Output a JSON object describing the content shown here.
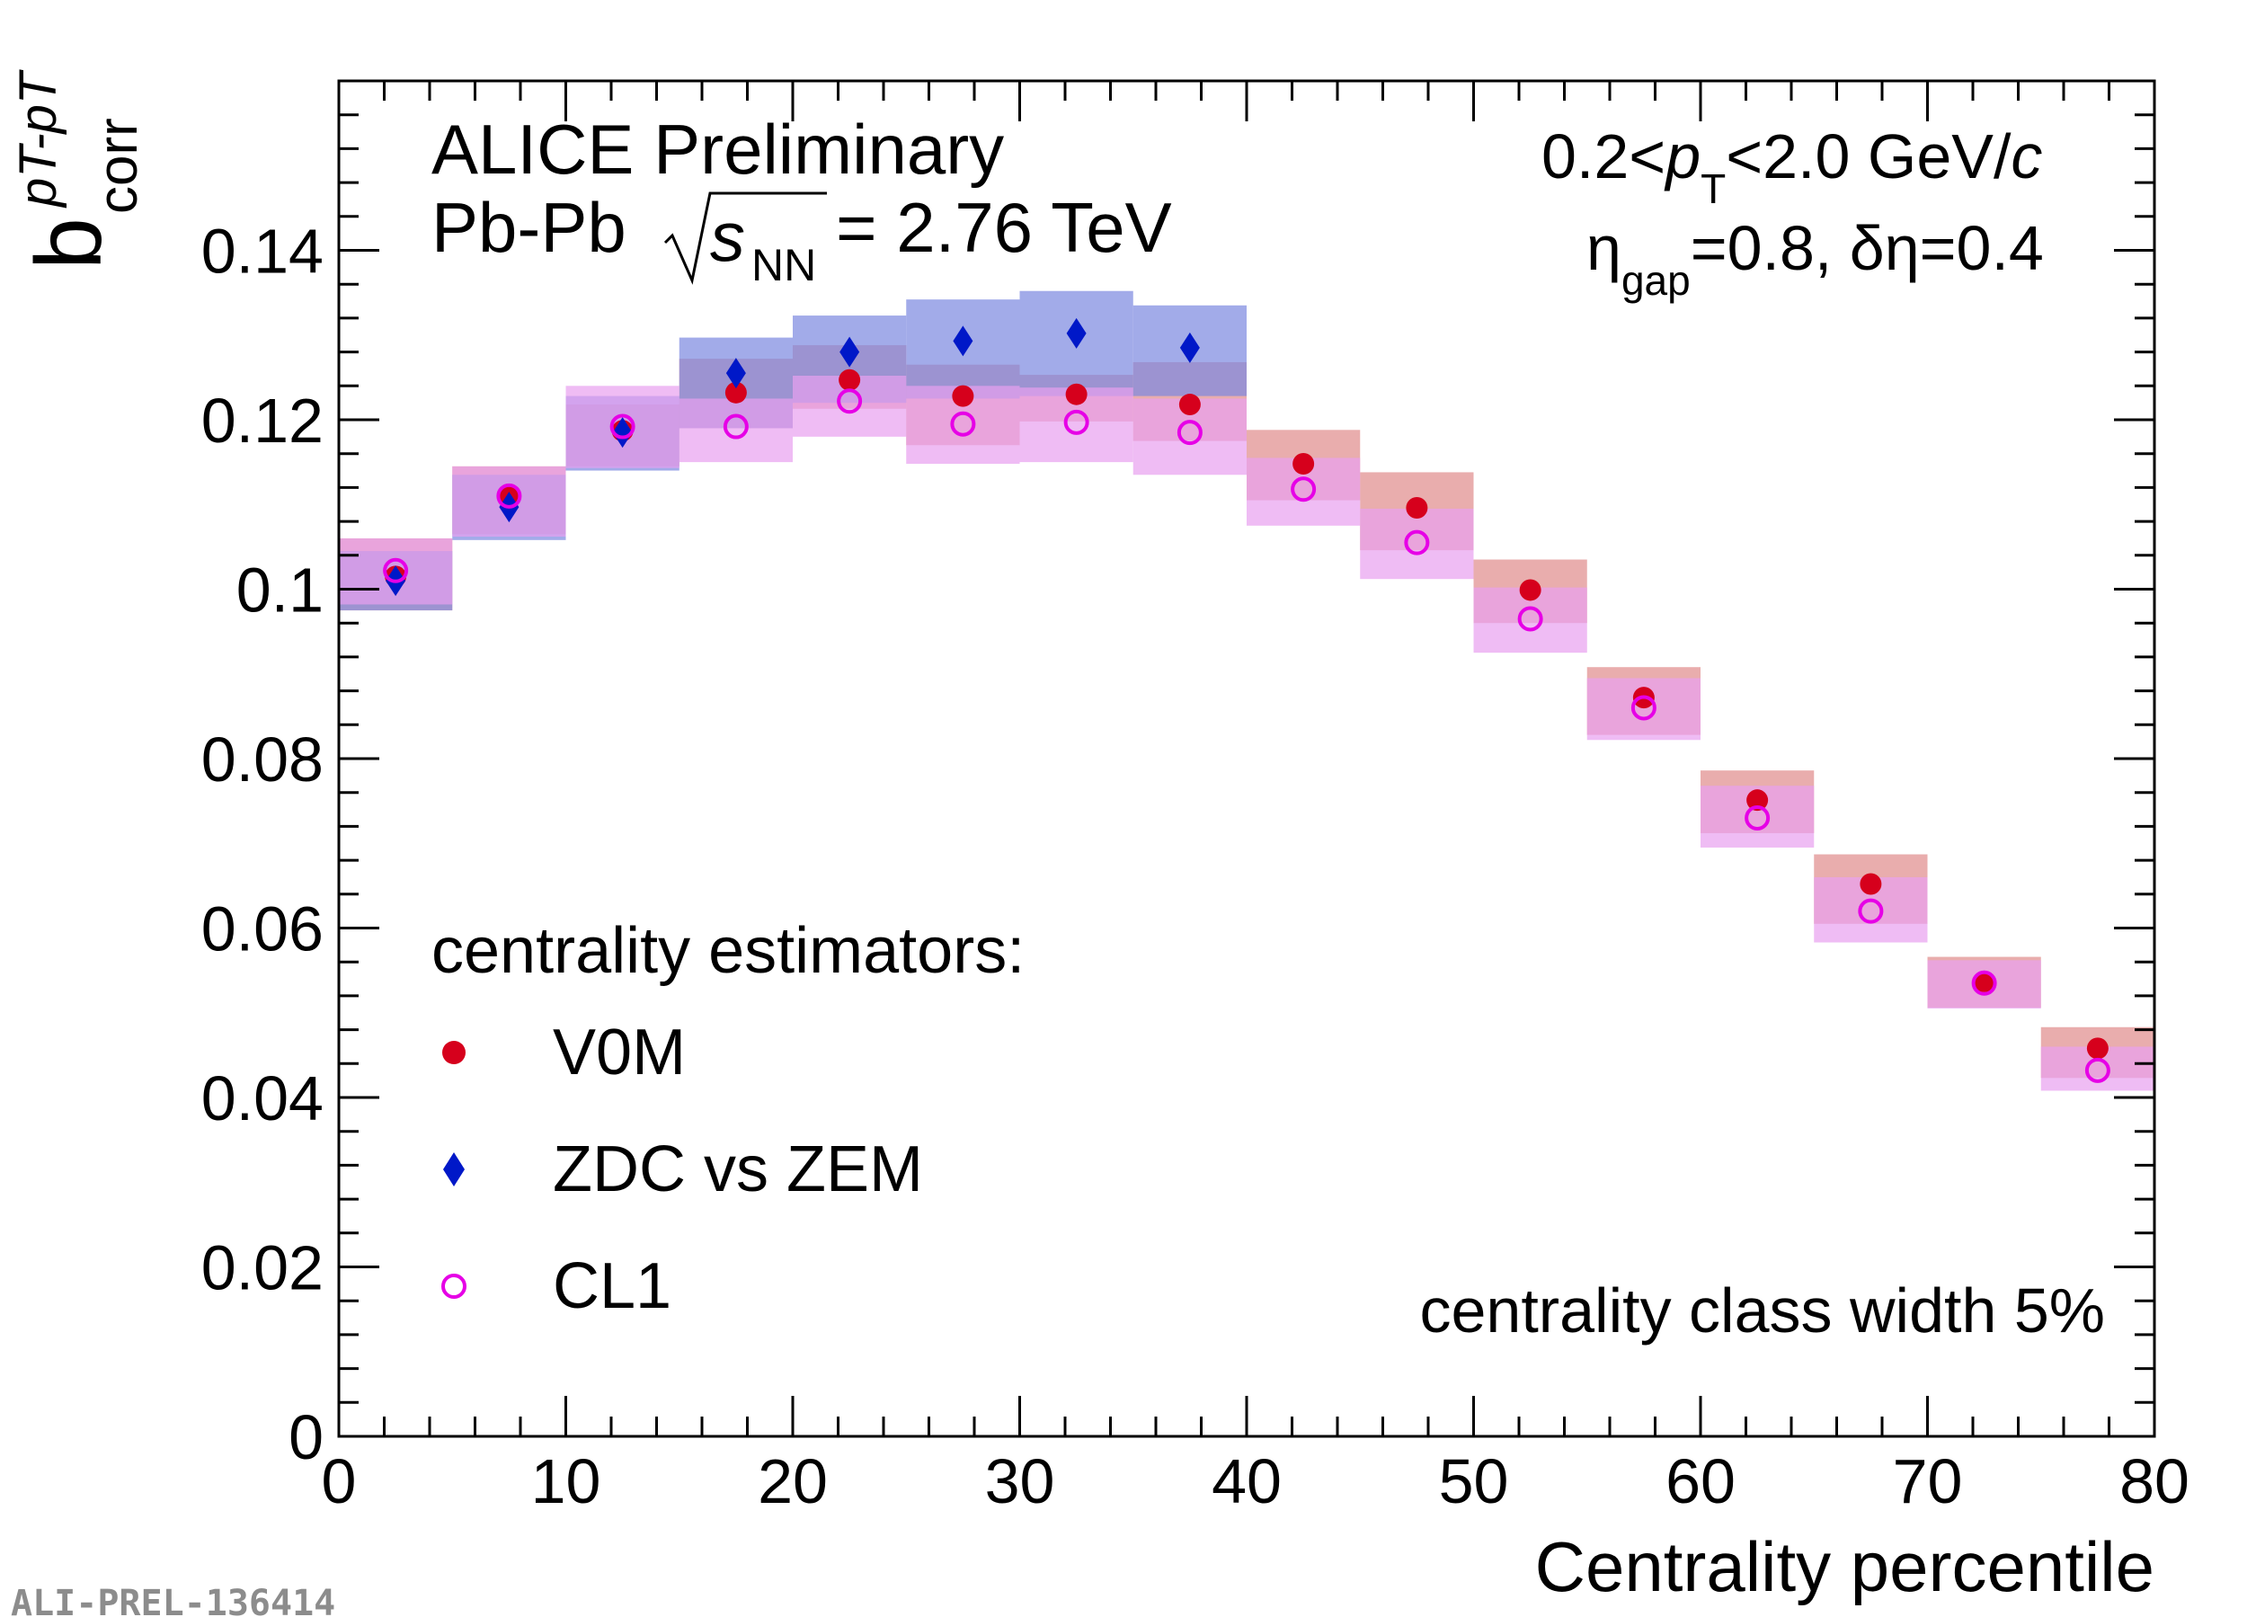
{
  "chart_data": {
    "type": "scatter",
    "title_lines": [
      "ALICE Preliminary",
      "Pb-Pb",
      "= 2.76 TeV"
    ],
    "collision_energy_symbol": {
      "base": "s",
      "sub": "NN"
    },
    "xlabel": "Centrality percentile",
    "ylabel": {
      "main": "b",
      "sub": "corr",
      "sup": "pT-pT"
    },
    "xlim": [
      0,
      80
    ],
    "ylim": [
      0,
      0.16
    ],
    "x_ticks": [
      "0",
      "10",
      "20",
      "30",
      "40",
      "50",
      "60",
      "70",
      "80"
    ],
    "y_ticks": [
      "0",
      "0.02",
      "0.04",
      "0.06",
      "0.08",
      "0.1",
      "0.12",
      "0.14"
    ],
    "annotations": {
      "pt_range": {
        "left": "0.2<",
        "p": "p",
        "T": "T",
        "right": "<2.0 GeV/",
        "c": "c"
      },
      "eta": {
        "eta": "η",
        "gap": "gap",
        "rest": "=0.8, δη=0.4"
      },
      "class_width": "centrality class width 5%",
      "legend_title": "centrality estimators:"
    },
    "legend_position": "bottom-left",
    "bin_width": 5,
    "series": [
      {
        "name": "V0M",
        "marker": "filled-circle",
        "color": "#d6001c",
        "box_color": "#e08a8a",
        "x": [
          2.5,
          7.5,
          12.5,
          17.5,
          22.5,
          27.5,
          32.5,
          37.5,
          42.5,
          47.5,
          52.5,
          57.5,
          62.5,
          67.5,
          72.5,
          77.5
        ],
        "y": [
          0.1015,
          0.1112,
          0.1187,
          0.1232,
          0.1247,
          0.1228,
          0.123,
          0.1218,
          0.1148,
          0.1096,
          0.0999,
          0.0872,
          0.0751,
          0.0652,
          0.0537,
          0.0458
        ],
        "sys_low": [
          0.0975,
          0.1065,
          0.1145,
          0.119,
          0.1213,
          0.117,
          0.1198,
          0.1175,
          0.1105,
          0.1046,
          0.096,
          0.0828,
          0.0712,
          0.0605,
          0.0506,
          0.0423
        ],
        "sys_high": [
          0.106,
          0.1145,
          0.1218,
          0.1272,
          0.1288,
          0.1265,
          0.1253,
          0.1268,
          0.1188,
          0.1138,
          0.1035,
          0.0908,
          0.0786,
          0.0687,
          0.0566,
          0.0483
        ]
      },
      {
        "name": "ZDC vs ZEM",
        "marker": "filled-diamond",
        "color": "#0018c8",
        "box_color": "#7a87e0",
        "x": [
          2.5,
          7.5,
          12.5,
          17.5,
          22.5,
          27.5,
          32.5,
          37.5
        ],
        "y": [
          0.101,
          0.1097,
          0.1185,
          0.1255,
          0.128,
          0.1293,
          0.1302,
          0.1285
        ],
        "sys_low": [
          0.0975,
          0.1058,
          0.114,
          0.119,
          0.122,
          0.1225,
          0.1228,
          0.1228
        ],
        "sys_high": [
          0.1045,
          0.1135,
          0.1228,
          0.1297,
          0.1323,
          0.1342,
          0.1352,
          0.1335
        ]
      },
      {
        "name": "CL1",
        "marker": "open-circle",
        "color": "#e600e6",
        "box_color": "#e8a0f0",
        "x": [
          2.5,
          7.5,
          12.5,
          17.5,
          22.5,
          27.5,
          32.5,
          37.5,
          42.5,
          47.5,
          52.5,
          57.5,
          62.5,
          67.5,
          72.5,
          77.5
        ],
        "y": [
          0.1022,
          0.111,
          0.1192,
          0.1192,
          0.1222,
          0.1195,
          0.1197,
          0.1185,
          0.1118,
          0.1055,
          0.0965,
          0.086,
          0.073,
          0.062,
          0.0535,
          0.0432
        ],
        "sys_low": [
          0.0982,
          0.1062,
          0.1143,
          0.115,
          0.118,
          0.1148,
          0.115,
          0.1135,
          0.1075,
          0.1012,
          0.0925,
          0.0822,
          0.0695,
          0.0583,
          0.0505,
          0.0408
        ],
        "sys_high": [
          0.106,
          0.1145,
          0.124,
          0.1225,
          0.1252,
          0.124,
          0.1238,
          0.1225,
          0.1155,
          0.1095,
          0.1002,
          0.0895,
          0.0768,
          0.066,
          0.0562,
          0.046
        ]
      }
    ]
  },
  "watermark": "ALI-PREL-136414"
}
